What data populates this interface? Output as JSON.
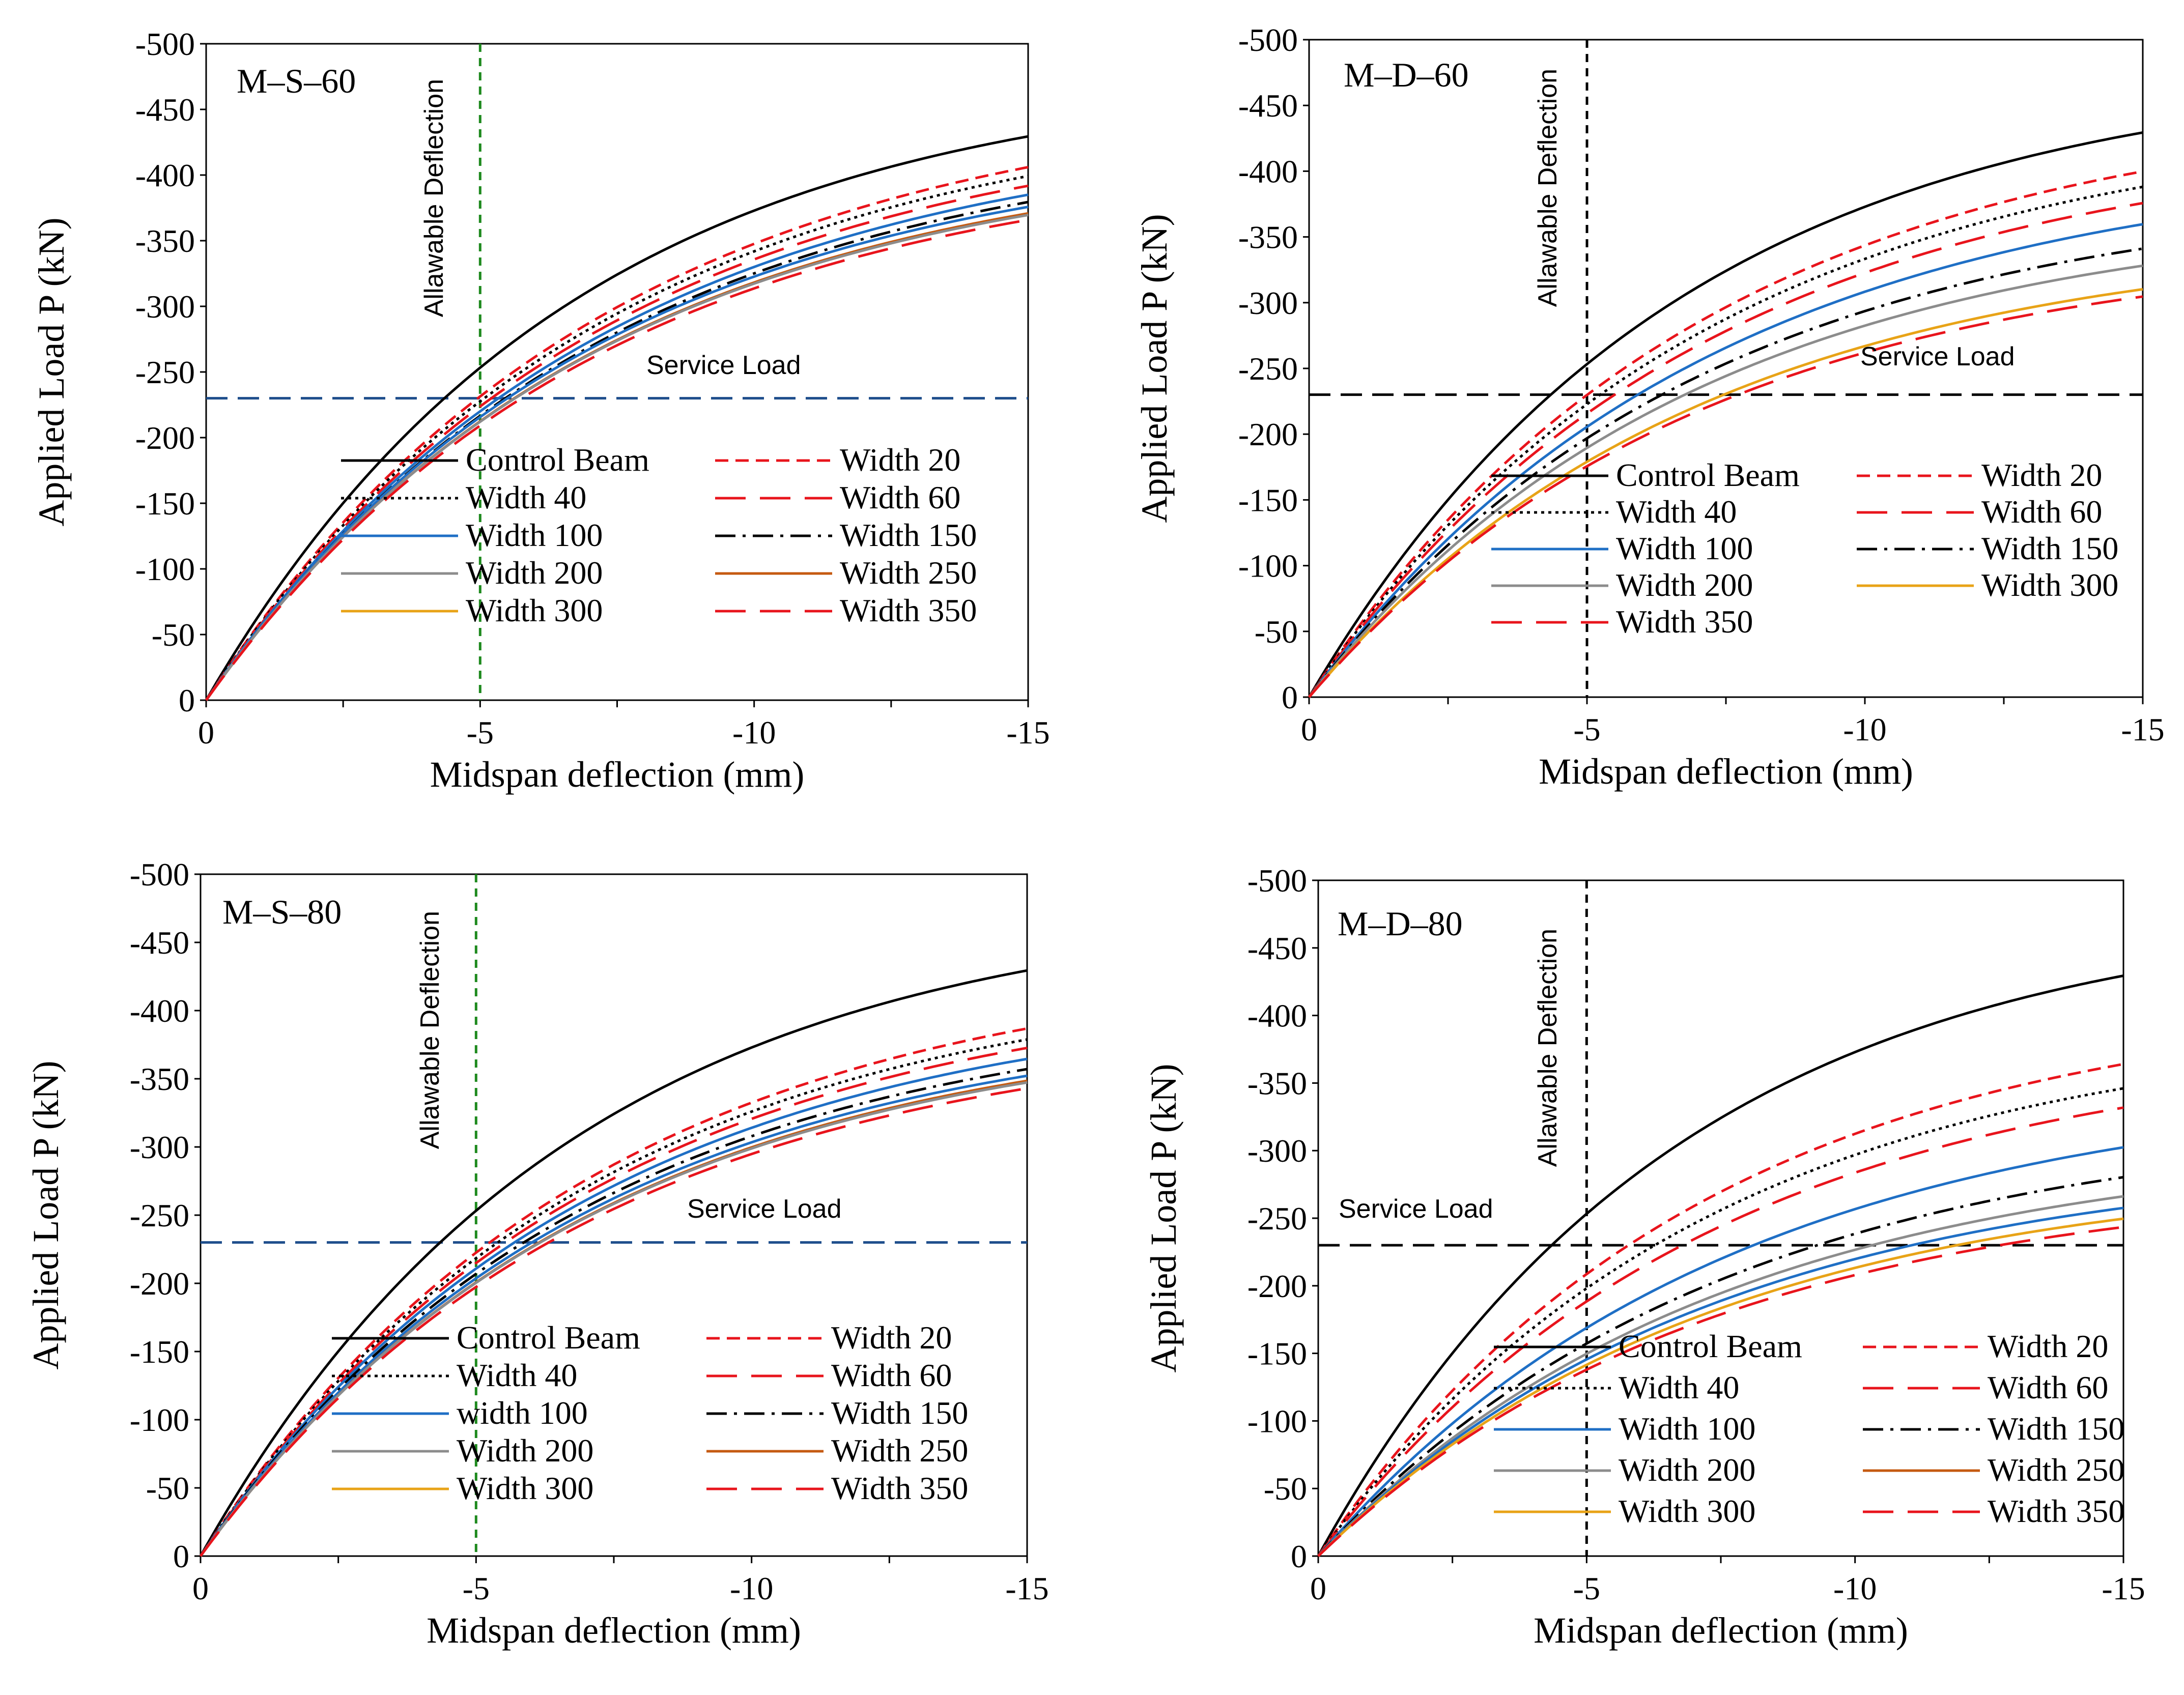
{
  "figure": {
    "xlabel": "Midspan deflection (mm)",
    "ylabel": "Applied Load P (kN)",
    "x_ticks": [
      "0",
      "-5",
      "-10",
      "-15"
    ],
    "y_ticks": [
      "0",
      "-50",
      "-100",
      "-150",
      "-200",
      "-250",
      "-300",
      "-350",
      "-400",
      "-450",
      "-500"
    ],
    "allowable_label": "Allawable Deflection",
    "service_label": "Service Load"
  },
  "styles": {
    "Control Beam": {
      "color": "#000000",
      "dash": ""
    },
    "Width 20": {
      "color": "#e8141c",
      "dash": "dash_short"
    },
    "Width 40": {
      "color": "#000000",
      "dash": "dot"
    },
    "Width 60": {
      "color": "#e8141c",
      "dash": "dash_long"
    },
    "Width 100": {
      "color": "#1f6fc5",
      "dash": ""
    },
    "width 100": {
      "color": "#1f6fc5",
      "dash": ""
    },
    "Width 150": {
      "color": "#000000",
      "dash": "dash_dot"
    },
    "Width 200": {
      "color": "#8c8c8c",
      "dash": ""
    },
    "Width 250": {
      "color": "#c55a11",
      "dash": ""
    },
    "Width 300": {
      "color": "#e8a317",
      "dash": ""
    },
    "Width 350": {
      "color": "#e8141c",
      "dash": "dash_long"
    }
  },
  "chart_data": [
    {
      "type": "line",
      "title": "M–S–60",
      "xlim": [
        0,
        -15
      ],
      "ylim": [
        0,
        -500
      ],
      "allowable_deflection": -5,
      "service_load": -230,
      "guide_color": "#1f8a1f",
      "service_color": "#1f4e8c",
      "legend": [
        [
          "Control Beam",
          "Width 20"
        ],
        [
          "Width 40",
          "Width 60"
        ],
        [
          "Width 100",
          "Width 150"
        ],
        [
          "Width 200",
          "Width 250"
        ],
        [
          "Width 300",
          "Width 350"
        ]
      ],
      "series": [
        {
          "name": "Control Beam",
          "color": "#000000",
          "dash": "",
          "k": 72,
          "ult": 480
        },
        {
          "name": "Width 20",
          "color": "#e8141c",
          "dash": "dash_short",
          "k": 64,
          "ult": 465
        },
        {
          "name": "Width 40",
          "color": "#000000",
          "dash": "dot",
          "k": 63,
          "ult": 457
        },
        {
          "name": "Width 60",
          "color": "#e8141c",
          "dash": "dash_long",
          "k": 62,
          "ult": 448
        },
        {
          "name": "Width 100",
          "color": "#1f6fc5",
          "dash": "",
          "k": 61,
          "ult": 440
        },
        {
          "name": "Width 150",
          "color": "#000000",
          "dash": "dash_dot",
          "k": 60,
          "ult": 434
        },
        {
          "name": "Width 200",
          "color": "#1f6fc5",
          "dash": "",
          "k": 60,
          "ult": 428
        },
        {
          "name": "Width 250",
          "color": "#c55a11",
          "dash": "",
          "k": 59,
          "ult": 423
        },
        {
          "name": "Width 300",
          "color": "#8c8c8c",
          "dash": "",
          "k": 59,
          "ult": 421
        },
        {
          "name": "Width 350",
          "color": "#e8141c",
          "dash": "dash_long",
          "k": 58,
          "ult": 418
        }
      ]
    },
    {
      "type": "line",
      "title": "M–D–60",
      "xlim": [
        0,
        -15
      ],
      "ylim": [
        0,
        -500
      ],
      "allowable_deflection": -5,
      "service_load": -230,
      "guide_color": "#000000",
      "service_color": "#000000",
      "legend": [
        [
          "Control Beam",
          "Width 20"
        ],
        [
          "Width 40",
          "Width 60"
        ],
        [
          "Width 100",
          "Width 150"
        ],
        [
          "Width 200",
          "Width 300"
        ],
        [
          "Width 350",
          ""
        ]
      ],
      "series": [
        {
          "name": "Control Beam",
          "color": "#000000",
          "dash": "",
          "k": 72,
          "ult": 480
        },
        {
          "name": "Width 20",
          "color": "#e8141c",
          "dash": "dash_short",
          "k": 64,
          "ult": 455
        },
        {
          "name": "Width 40",
          "color": "#000000",
          "dash": "dot",
          "k": 62,
          "ult": 442
        },
        {
          "name": "Width 60",
          "color": "#e8141c",
          "dash": "dash_long",
          "k": 60,
          "ult": 428
        },
        {
          "name": "Width 100",
          "color": "#1f6fc5",
          "dash": "",
          "k": 57,
          "ult": 411
        },
        {
          "name": "Width 150",
          "color": "#000000",
          "dash": "dash_dot",
          "k": 55,
          "ult": 387
        },
        {
          "name": "Width 200",
          "color": "#8c8c8c",
          "dash": "",
          "k": 53,
          "ult": 372
        },
        {
          "name": "Width 300",
          "color": "#e8a317",
          "dash": "",
          "k": 50,
          "ult": 352
        },
        {
          "name": "Width 350",
          "color": "#e8141c",
          "dash": "dash_long",
          "k": 49,
          "ult": 346
        }
      ]
    },
    {
      "type": "line",
      "title": "M–S–80",
      "xlim": [
        0,
        -15
      ],
      "ylim": [
        0,
        -500
      ],
      "allowable_deflection": -5,
      "service_load": -230,
      "guide_color": "#1f8a1f",
      "service_color": "#1f4e8c",
      "legend": [
        [
          "Control Beam",
          "Width 20"
        ],
        [
          "Width 40",
          "Width 60"
        ],
        [
          "width 100",
          "Width 150"
        ],
        [
          "Width 200",
          "Width 250"
        ],
        [
          "Width 300",
          "Width 350"
        ]
      ],
      "series": [
        {
          "name": "Control Beam",
          "color": "#000000",
          "dash": "",
          "k": 72,
          "ult": 480
        },
        {
          "name": "Width 20",
          "color": "#e8141c",
          "dash": "dash_short",
          "k": 62,
          "ult": 440
        },
        {
          "name": "Width 40",
          "color": "#000000",
          "dash": "dot",
          "k": 61,
          "ult": 430
        },
        {
          "name": "Width 60",
          "color": "#e8141c",
          "dash": "dash_long",
          "k": 60,
          "ult": 423
        },
        {
          "name": "width 100",
          "color": "#1f6fc5",
          "dash": "",
          "k": 59,
          "ult": 413
        },
        {
          "name": "Width 150",
          "color": "#000000",
          "dash": "dash_dot",
          "k": 58,
          "ult": 404
        },
        {
          "name": "Width 200",
          "color": "#1f6fc5",
          "dash": "",
          "k": 57,
          "ult": 399
        },
        {
          "name": "Width 250",
          "color": "#c55a11",
          "dash": "",
          "k": 56,
          "ult": 396
        },
        {
          "name": "Width 300",
          "color": "#8c8c8c",
          "dash": "",
          "k": 56,
          "ult": 394
        },
        {
          "name": "Width 350",
          "color": "#e8141c",
          "dash": "dash_long",
          "k": 55,
          "ult": 390
        }
      ]
    },
    {
      "type": "line",
      "title": "M–D–80",
      "xlim": [
        0,
        -15
      ],
      "ylim": [
        0,
        -500
      ],
      "allowable_deflection": -5,
      "service_load": -230,
      "guide_color": "#000000",
      "service_color": "#000000",
      "legend": [
        [
          "Control Beam",
          "Width 20"
        ],
        [
          "Width 40",
          "Width 60"
        ],
        [
          "Width 100",
          "Width 150"
        ],
        [
          "Width 200",
          "Width 250"
        ],
        [
          "Width 300",
          "Width 350"
        ]
      ],
      "series": [
        {
          "name": "Control Beam",
          "color": "#000000",
          "dash": "",
          "k": 72,
          "ult": 480
        },
        {
          "name": "Width 20",
          "color": "#e8141c",
          "dash": "dash_short",
          "k": 58,
          "ult": 415
        },
        {
          "name": "Width 40",
          "color": "#000000",
          "dash": "dot",
          "k": 55,
          "ult": 395
        },
        {
          "name": "Width 60",
          "color": "#e8141c",
          "dash": "dash_long",
          "k": 52,
          "ult": 381
        },
        {
          "name": "Width 100",
          "color": "#1f6fc5",
          "dash": "",
          "k": 46,
          "ult": 352
        },
        {
          "name": "Width 150",
          "color": "#000000",
          "dash": "dash_dot",
          "k": 43,
          "ult": 325
        },
        {
          "name": "Width 200",
          "color": "#8c8c8c",
          "dash": "",
          "k": 41,
          "ult": 308
        },
        {
          "name": "Width 250",
          "color": "#1f6fc5",
          "dash": "",
          "k": 40,
          "ult": 297
        },
        {
          "name": "Width 300",
          "color": "#e8a317",
          "dash": "",
          "k": 39,
          "ult": 287
        },
        {
          "name": "Width 350",
          "color": "#e8141c",
          "dash": "dash_long",
          "k": 38,
          "ult": 280
        }
      ]
    }
  ]
}
